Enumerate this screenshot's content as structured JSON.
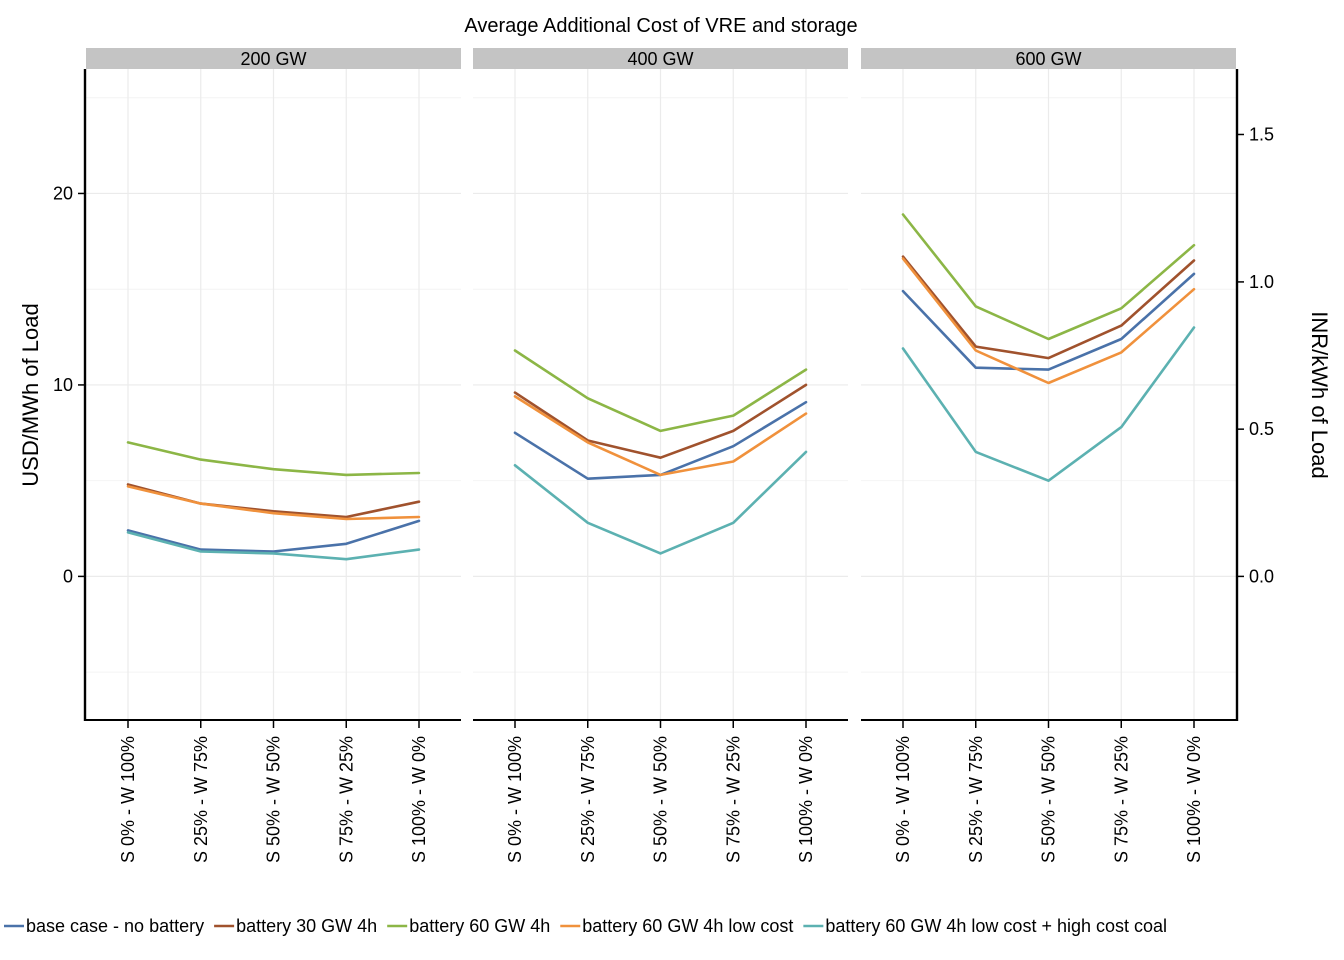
{
  "chart_data": {
    "type": "line",
    "title": "Average Additional Cost of VRE and storage",
    "ylabel": "USD/MWh of Load",
    "ylabel_right": "INR/kWh of Load",
    "ylim": [
      -7.5,
      26.5
    ],
    "yticks": [
      0,
      10,
      20
    ],
    "yticks_right": [
      {
        "value": 0,
        "label": "0.0"
      },
      {
        "value": 7.69,
        "label": "0.5"
      },
      {
        "value": 15.38,
        "label": "1.0"
      },
      {
        "value": 23.08,
        "label": "1.5"
      }
    ],
    "categories": [
      "S 0% - W 100%",
      "S 25% - W 75%",
      "S 50% - W 50%",
      "S 75% - W 25%",
      "S 100% - W 0%"
    ],
    "grid": true,
    "legend_position": "bottom",
    "colors": {
      "base case - no battery": "#4a72a9",
      "battery 30 GW 4h": "#a0522d",
      "battery 60 GW 4h": "#8cb646",
      "battery 60 GW 4h low cost": "#f0913c",
      "battery 60 GW 4h low cost + high cost coal": "#5cb1b1",
      "strip_bg": "#c4c4c4",
      "grid": "#ebebeb"
    },
    "legend": [
      "base case - no battery",
      "battery 30 GW 4h",
      "battery 60 GW 4h",
      "battery 60 GW 4h low cost",
      "battery 60 GW 4h low cost + high cost coal"
    ],
    "panels": [
      {
        "label": "200 GW",
        "series": [
          {
            "name": "base case - no battery",
            "values": [
              2.4,
              1.4,
              1.3,
              1.7,
              2.9
            ]
          },
          {
            "name": "battery 30 GW 4h",
            "values": [
              4.8,
              3.8,
              3.4,
              3.1,
              3.9
            ]
          },
          {
            "name": "battery 60 GW 4h",
            "values": [
              7.0,
              6.1,
              5.6,
              5.3,
              5.4
            ]
          },
          {
            "name": "battery 60 GW 4h low cost",
            "values": [
              4.7,
              3.8,
              3.3,
              3.0,
              3.1
            ]
          },
          {
            "name": "battery 60 GW 4h low cost + high cost coal",
            "values": [
              2.3,
              1.3,
              1.2,
              0.9,
              1.4
            ]
          }
        ]
      },
      {
        "label": "400 GW",
        "series": [
          {
            "name": "base case - no battery",
            "values": [
              7.5,
              5.1,
              5.3,
              6.8,
              9.1
            ]
          },
          {
            "name": "battery 30 GW 4h",
            "values": [
              9.6,
              7.1,
              6.2,
              7.6,
              10.0
            ]
          },
          {
            "name": "battery 60 GW 4h",
            "values": [
              11.8,
              9.3,
              7.6,
              8.4,
              10.8
            ]
          },
          {
            "name": "battery 60 GW 4h low cost",
            "values": [
              9.4,
              7.0,
              5.3,
              6.0,
              8.5
            ]
          },
          {
            "name": "battery 60 GW 4h low cost + high cost coal",
            "values": [
              5.8,
              2.8,
              1.2,
              2.8,
              6.5
            ]
          }
        ]
      },
      {
        "label": "600 GW",
        "series": [
          {
            "name": "base case - no battery",
            "values": [
              14.9,
              10.9,
              10.8,
              12.4,
              15.8
            ]
          },
          {
            "name": "battery 30 GW 4h",
            "values": [
              16.7,
              12.0,
              11.4,
              13.1,
              16.5
            ]
          },
          {
            "name": "battery 60 GW 4h",
            "values": [
              18.9,
              14.1,
              12.4,
              14.0,
              17.3
            ]
          },
          {
            "name": "battery 60 GW 4h low cost",
            "values": [
              16.6,
              11.8,
              10.1,
              11.7,
              15.0
            ]
          },
          {
            "name": "battery 60 GW 4h low cost + high cost coal",
            "values": [
              11.9,
              6.5,
              5.0,
              7.8,
              13.0
            ]
          }
        ]
      }
    ]
  }
}
